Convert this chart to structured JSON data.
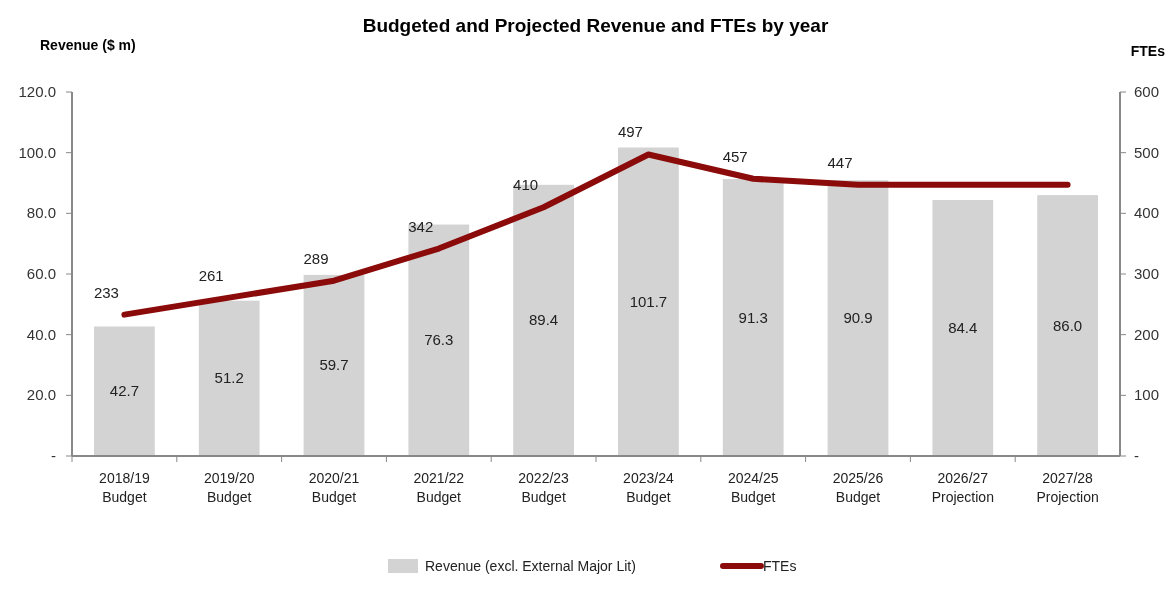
{
  "chart_data": {
    "type": "bar",
    "title": "Budgeted and Projected Revenue and FTEs by year",
    "ylabel": "Revenue ($ m)",
    "y2label": "FTEs",
    "categories": [
      "2018/19\nBudget",
      "2019/20\nBudget",
      "2020/21\nBudget",
      "2021/22\nBudget",
      "2022/23\nBudget",
      "2023/24\nBudget",
      "2024/25\nBudget",
      "2025/26\nBudget",
      "2026/27\nProjection",
      "2027/28\nProjection"
    ],
    "series": [
      {
        "name": "Revenue (excl. External Major Lit)",
        "color": "#d3d3d3",
        "values": [
          42.7,
          51.2,
          59.7,
          76.3,
          89.4,
          101.7,
          91.3,
          90.9,
          84.4,
          86.0
        ],
        "value_labels": [
          "42.7",
          "51.2",
          "59.7",
          "76.3",
          "89.4",
          "101.7",
          "91.3",
          "90.9",
          "84.4",
          "86.0"
        ]
      },
      {
        "name": "FTEs",
        "type": "line",
        "axis": "y2",
        "color": "#8b0a0a",
        "values": [
          233,
          261,
          289,
          342,
          410,
          497,
          457,
          447,
          447,
          447
        ],
        "value_labels": [
          "233",
          "261",
          "289",
          "342",
          "410",
          "497",
          "457",
          "447",
          null,
          null
        ]
      }
    ],
    "ylim": [
      0,
      120
    ],
    "yticks": [
      {
        "value": 0,
        "label": "-"
      },
      {
        "value": 20,
        "label": "20.0"
      },
      {
        "value": 40,
        "label": "40.0"
      },
      {
        "value": 60,
        "label": "60.0"
      },
      {
        "value": 80,
        "label": "80.0"
      },
      {
        "value": 100,
        "label": "100.0"
      },
      {
        "value": 120,
        "label": "120.0"
      }
    ],
    "y2lim": [
      0,
      600
    ],
    "y2ticks": [
      {
        "value": 0,
        "label": "-"
      },
      100,
      200,
      300,
      400,
      500,
      600
    ],
    "grid": false,
    "legend": "bottom",
    "line_style": "solid",
    "marker": "none"
  }
}
